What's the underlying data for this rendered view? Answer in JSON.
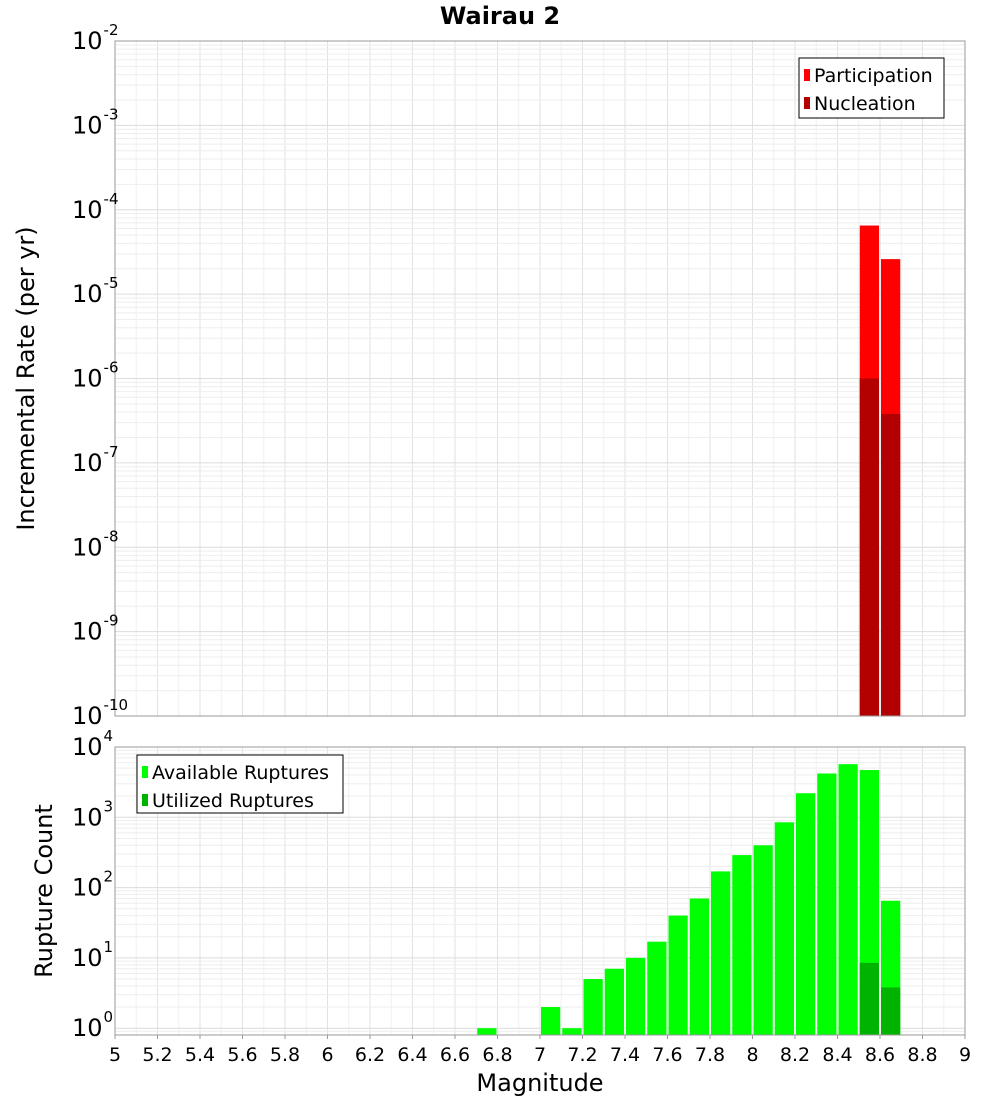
{
  "chart_data": [
    {
      "type": "bar",
      "title": "Wairau 2",
      "ylabel": "Incremental Rate (per yr)",
      "xlabel": "",
      "yscale": "log",
      "ylim": [
        1e-10,
        0.01
      ],
      "xlim": [
        5,
        9
      ],
      "grid": true,
      "legend_position": "top-right",
      "bar_width": 0.1,
      "series": [
        {
          "name": "Participation",
          "color": "#ff0000",
          "x": [
            8.55,
            8.65
          ],
          "values": [
            6.5e-05,
            2.6e-05
          ]
        },
        {
          "name": "Nucleation",
          "color": "#b30000",
          "x": [
            8.55,
            8.65
          ],
          "values": [
            1e-06,
            3.8e-07
          ]
        }
      ],
      "y_ticks": [
        {
          "base": "10",
          "exp": "-2"
        },
        {
          "base": "10",
          "exp": "-3"
        },
        {
          "base": "10",
          "exp": "-4"
        },
        {
          "base": "10",
          "exp": "-5"
        },
        {
          "base": "10",
          "exp": "-6"
        },
        {
          "base": "10",
          "exp": "-7"
        },
        {
          "base": "10",
          "exp": "-8"
        },
        {
          "base": "10",
          "exp": "-9"
        },
        {
          "base": "10",
          "exp": "-10"
        }
      ]
    },
    {
      "type": "bar",
      "title": "",
      "ylabel": "Rupture Count",
      "xlabel": "Magnitude",
      "yscale": "log",
      "ylim": [
        0.8,
        10000
      ],
      "xlim": [
        5,
        9
      ],
      "grid": true,
      "legend_position": "top-left",
      "bar_width": 0.1,
      "series": [
        {
          "name": "Available Ruptures",
          "color": "#00ff00",
          "x": [
            6.75,
            7.05,
            7.15,
            7.25,
            7.35,
            7.45,
            7.55,
            7.65,
            7.75,
            7.85,
            7.95,
            8.05,
            8.15,
            8.25,
            8.35,
            8.45,
            8.55,
            8.65
          ],
          "values": [
            1,
            2,
            1,
            5,
            7,
            10,
            17,
            40,
            70,
            170,
            290,
            400,
            850,
            2200,
            4200,
            5700,
            4700,
            65
          ]
        },
        {
          "name": "Utilized Ruptures",
          "color": "#00b300",
          "x": [
            8.55,
            8.65
          ],
          "values": [
            8.5,
            3.8
          ]
        }
      ],
      "y_ticks": [
        {
          "base": "10",
          "exp": "4"
        },
        {
          "base": "10",
          "exp": "3"
        },
        {
          "base": "10",
          "exp": "2"
        },
        {
          "base": "10",
          "exp": "1"
        },
        {
          "base": "10",
          "exp": "0"
        }
      ],
      "x_ticks": [
        "5",
        "5.2",
        "5.4",
        "5.6",
        "5.8",
        "6",
        "6.2",
        "6.4",
        "6.6",
        "6.8",
        "7",
        "7.2",
        "7.4",
        "7.6",
        "7.8",
        "8",
        "8.2",
        "8.4",
        "8.6",
        "8.8",
        "9"
      ]
    }
  ]
}
